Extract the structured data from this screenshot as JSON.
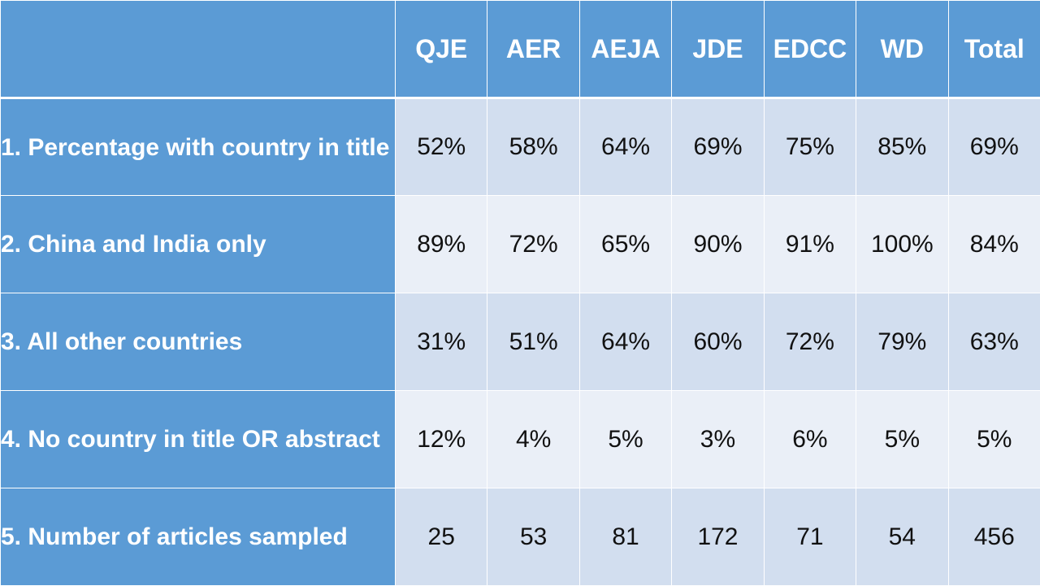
{
  "chart_data": {
    "type": "table",
    "columns": [
      "QJE",
      "AER",
      "AEJA",
      "JDE",
      "EDCC",
      "WD",
      "Total"
    ],
    "rows": [
      {
        "label": "1. Percentage with country in title",
        "values": [
          "52%",
          "58%",
          "64%",
          "69%",
          "75%",
          "85%",
          "69%"
        ]
      },
      {
        "label": "2. China and India only",
        "values": [
          "89%",
          "72%",
          "65%",
          "90%",
          "91%",
          "100%",
          "84%"
        ]
      },
      {
        "label": "3. All other countries",
        "values": [
          "31%",
          "51%",
          "64%",
          "60%",
          "72%",
          "79%",
          "63%"
        ]
      },
      {
        "label": "4. No country in title OR abstract",
        "values": [
          "12%",
          "4%",
          "5%",
          "3%",
          "6%",
          "5%",
          "5%"
        ]
      },
      {
        "label": "5. Number of articles sampled",
        "values": [
          "25",
          "53",
          "81",
          "172",
          "71",
          "54",
          "456"
        ]
      }
    ]
  },
  "colors": {
    "header_fill": "#5b9bd5",
    "band_dark": "#d2deef",
    "band_light": "#eaeff7",
    "header_text": "#ffffff",
    "cell_text": "#111111"
  }
}
